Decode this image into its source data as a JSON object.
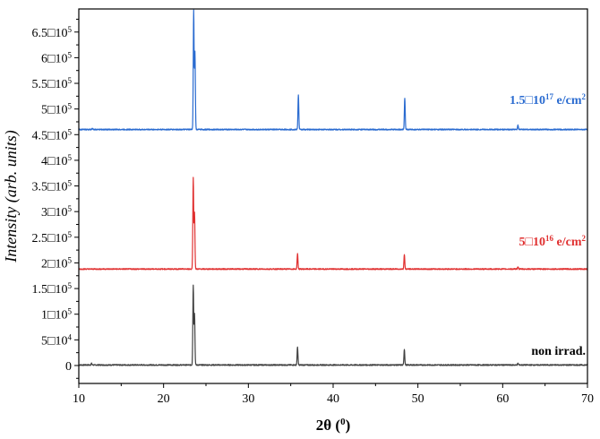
{
  "chart_data": {
    "type": "line",
    "xlabel": "2θ (",
    "xlabel_sup": "0",
    "xlabel_close": ")",
    "ylabel": "Intensity (arb. units)",
    "xlim": [
      10,
      70
    ],
    "ylim": [
      -35000,
      695000
    ],
    "x_ticks": [
      10,
      20,
      30,
      40,
      50,
      60,
      70
    ],
    "y_ticks": [
      {
        "value": 0,
        "label": "0"
      },
      {
        "value": 50000,
        "label": "5□10",
        "exp": "4"
      },
      {
        "value": 100000,
        "label": "1□10",
        "exp": "5"
      },
      {
        "value": 150000,
        "label": "1.5□10",
        "exp": "5"
      },
      {
        "value": 200000,
        "label": "2□10",
        "exp": "5"
      },
      {
        "value": 250000,
        "label": "2.5□10",
        "exp": "5"
      },
      {
        "value": 300000,
        "label": "3□10",
        "exp": "5"
      },
      {
        "value": 350000,
        "label": "3.5□10",
        "exp": "5"
      },
      {
        "value": 400000,
        "label": "4□10",
        "exp": "5"
      },
      {
        "value": 450000,
        "label": "4.5□10",
        "exp": "5"
      },
      {
        "value": 500000,
        "label": "5□10",
        "exp": "5"
      },
      {
        "value": 550000,
        "label": "5.5□10",
        "exp": "5"
      },
      {
        "value": 600000,
        "label": "6□10",
        "exp": "5"
      },
      {
        "value": 650000,
        "label": "6.5□10",
        "exp": "5"
      }
    ],
    "grid": false,
    "series": [
      {
        "name": "non irrad.",
        "label_parts": {
          "base": "non irrad.",
          "exp": "",
          "unit": "",
          "unit_exp": ""
        },
        "color": "#404040",
        "baseline": 1000,
        "peaks": [
          {
            "x": 11.5,
            "height": 3000
          },
          {
            "x": 23.5,
            "height": 155000
          },
          {
            "x": 23.65,
            "height": 100000
          },
          {
            "x": 35.8,
            "height": 35000
          },
          {
            "x": 48.4,
            "height": 31000
          },
          {
            "x": 61.8,
            "height": 3000
          }
        ]
      },
      {
        "name": "5□10¹⁶ e/cm²",
        "label_parts": {
          "base": "5□10",
          "exp": "16",
          "unit": " e/cm",
          "unit_exp": "2"
        },
        "color": "#e03030",
        "baseline": 188000,
        "peaks": [
          {
            "x": 23.5,
            "height": 177000
          },
          {
            "x": 23.65,
            "height": 110000
          },
          {
            "x": 35.8,
            "height": 30000
          },
          {
            "x": 48.4,
            "height": 28000
          },
          {
            "x": 61.8,
            "height": 5000
          }
        ]
      },
      {
        "name": "1.5□10¹⁷ e/cm²",
        "label_parts": {
          "base": "1.5□10",
          "exp": "17",
          "unit": " e/cm",
          "unit_exp": "2"
        },
        "color": "#2a6bd0",
        "baseline": 460000,
        "peaks": [
          {
            "x": 11.6,
            "height": 3000
          },
          {
            "x": 23.55,
            "height": 232000
          },
          {
            "x": 23.7,
            "height": 150000
          },
          {
            "x": 35.9,
            "height": 68000
          },
          {
            "x": 48.45,
            "height": 62000
          },
          {
            "x": 61.8,
            "height": 8000
          }
        ]
      }
    ]
  }
}
